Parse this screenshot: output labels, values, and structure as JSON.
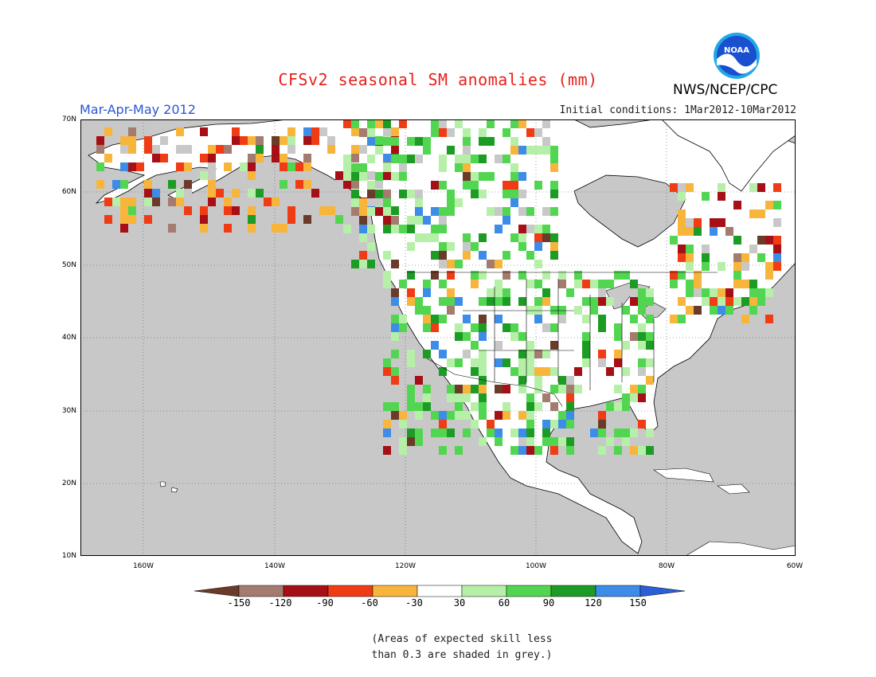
{
  "title": "CFSv2 seasonal SM anomalies (mm)",
  "season": "Mar-Apr-May 2012",
  "initial_conditions": "Initial conditions: 1Mar2012-10Mar2012",
  "agency": "NWS/NCEP/CPC",
  "logo_text": "NOAA",
  "note_line1": "(Areas of expected skill less",
  "note_line2": "than 0.3 are shaded in grey.)",
  "lat_labels": [
    "70N",
    "60N",
    "50N",
    "40N",
    "30N",
    "20N",
    "10N"
  ],
  "lon_labels": [
    "160W",
    "140W",
    "120W",
    "100W",
    "80W",
    "60W"
  ],
  "colorbar": {
    "labels": [
      "-150",
      "-120",
      "-90",
      "-60",
      "-30",
      "30",
      "60",
      "90",
      "120",
      "150"
    ],
    "colors": [
      "#6b3b2a",
      "#a47b6f",
      "#a50f15",
      "#f03c14",
      "#f8b53c",
      "#ffffff",
      "#b6f0a8",
      "#52d652",
      "#1c9c24",
      "#3c8ce8",
      "#2a5fd8"
    ]
  },
  "colors": {
    "ocean": "#c8c8c8",
    "land": "#ffffff",
    "grey_low_skill": "#c8c8c8",
    "title": "#e8201c",
    "season": "#2856d8"
  }
}
